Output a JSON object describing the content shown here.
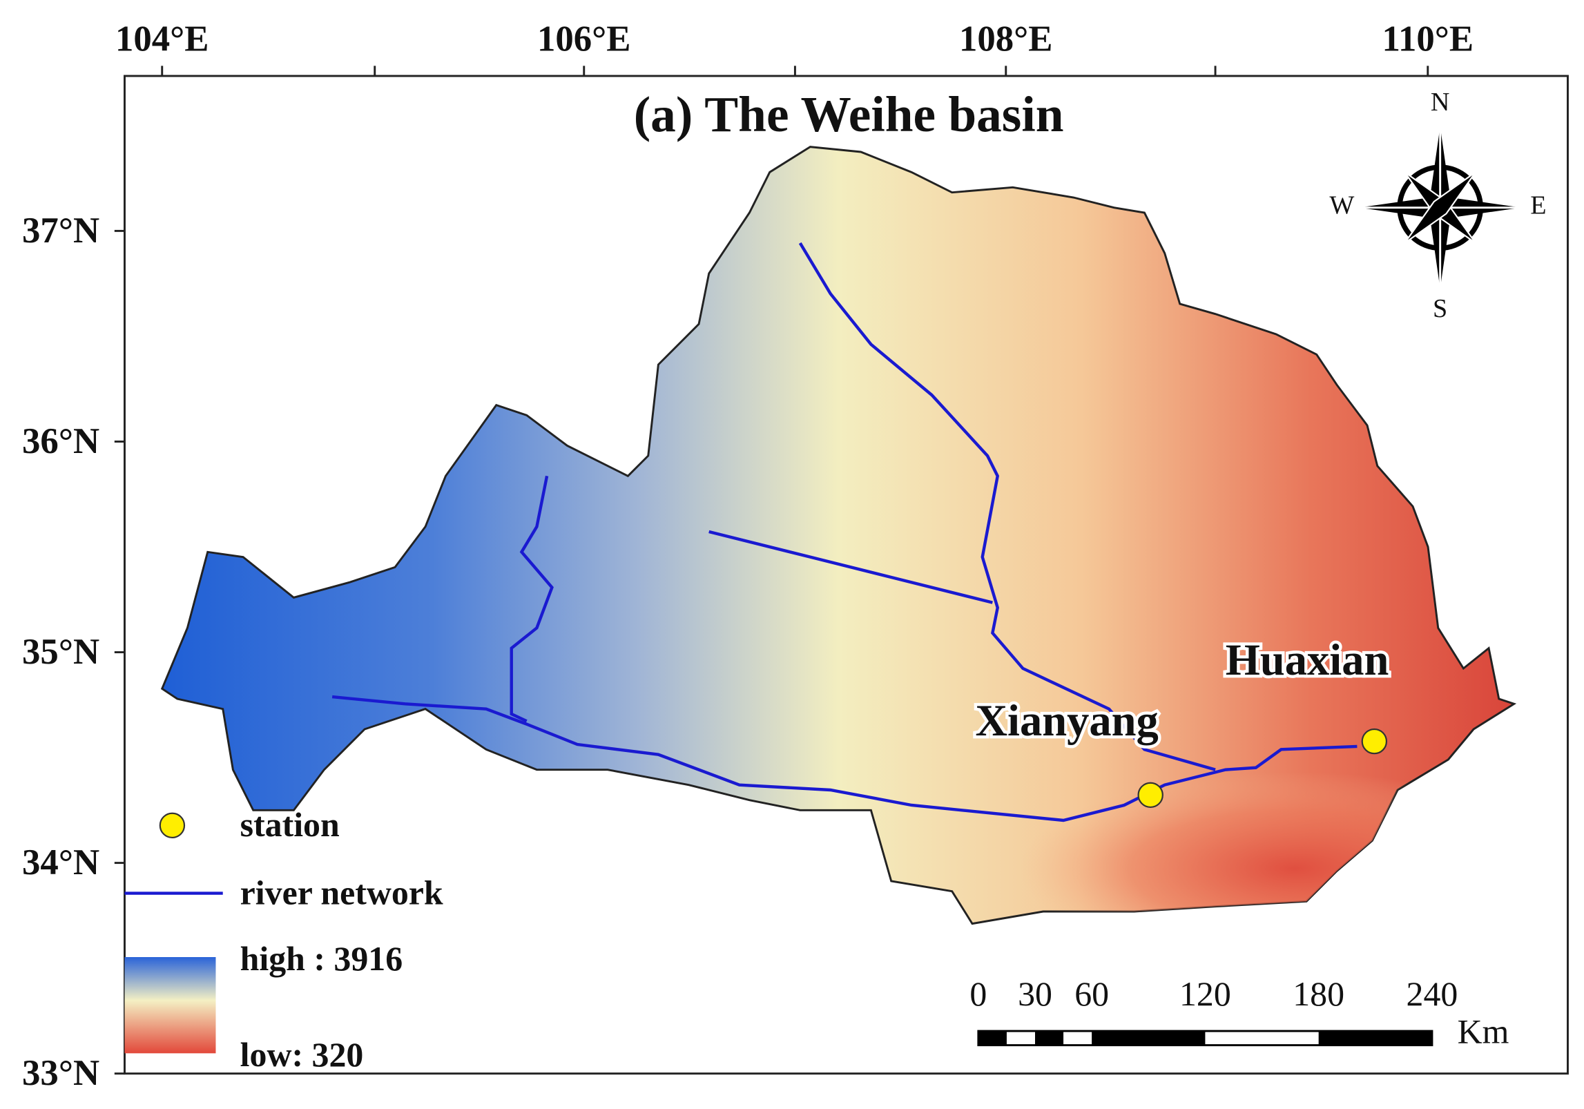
{
  "title": "(a) The Weihe basin",
  "longitude_ticks": [
    {
      "value": 104,
      "label": "104°E"
    },
    {
      "value": 106,
      "label": "106°E"
    },
    {
      "value": 108,
      "label": "108°E"
    },
    {
      "value": 110,
      "label": "110°E"
    }
  ],
  "latitude_ticks": [
    {
      "value": 37,
      "label": "37°N"
    },
    {
      "value": 36,
      "label": "36°N"
    },
    {
      "value": 35,
      "label": "35°N"
    },
    {
      "value": 34,
      "label": "34°N"
    },
    {
      "value": 33,
      "label": "33°N"
    }
  ],
  "compass": {
    "north": "N",
    "south": "S",
    "west": "W",
    "east": "E"
  },
  "stations": [
    {
      "name": "Xianyang"
    },
    {
      "name": "Huaxian"
    }
  ],
  "legend": {
    "station": "station",
    "river": "river network",
    "high": "high : 3916",
    "low": "low: 320"
  },
  "scale_bar": {
    "ticks": [
      0,
      30,
      60,
      120,
      180,
      240
    ],
    "unit": "Km"
  }
}
